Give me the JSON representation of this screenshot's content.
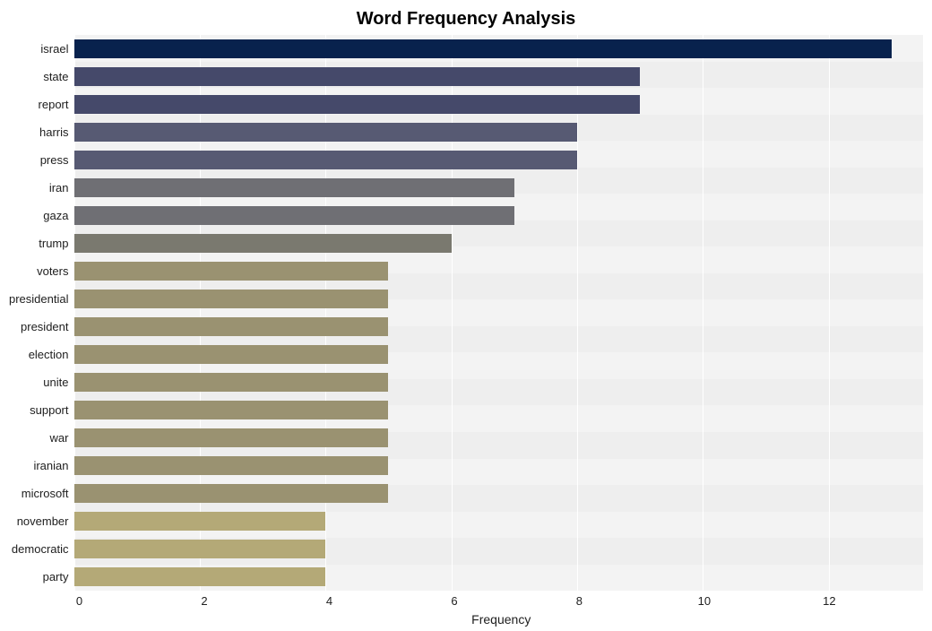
{
  "chart": {
    "type": "bar-horizontal",
    "title": "Word Frequency Analysis",
    "title_fontsize": 20,
    "title_fontweight": "bold",
    "title_color": "#000000",
    "background_color": "#ffffff",
    "plot_background_color": "#f3f3f3",
    "plot_band_color_dark": "#eeeeee",
    "grid_color": "#ffffff",
    "xlabel": "Frequency",
    "xlabel_fontsize": 14,
    "label_fontsize": 13,
    "tick_fontsize": 13,
    "xlim": [
      0,
      13.5
    ],
    "xtick_step": 2,
    "xticks": [
      0,
      2,
      4,
      6,
      8,
      10,
      12
    ],
    "bar_height_ratio": 0.72,
    "categories": [
      "israel",
      "state",
      "report",
      "harris",
      "press",
      "iran",
      "gaza",
      "trump",
      "voters",
      "presidential",
      "president",
      "election",
      "unite",
      "support",
      "war",
      "iranian",
      "microsoft",
      "november",
      "democratic",
      "party"
    ],
    "values": [
      13,
      9,
      9,
      8,
      8,
      7,
      7,
      6,
      5,
      5,
      5,
      5,
      5,
      5,
      5,
      5,
      5,
      4,
      4,
      4
    ],
    "bar_colors": [
      "#08224d",
      "#45496a",
      "#45496a",
      "#575a73",
      "#575a73",
      "#6f6f74",
      "#6f6f74",
      "#7a796f",
      "#9a9271",
      "#9a9271",
      "#9a9271",
      "#9a9271",
      "#9a9271",
      "#9a9271",
      "#9a9271",
      "#9a9271",
      "#9a9271",
      "#b4a977",
      "#b4a977",
      "#b4a977"
    ],
    "axis_text_color": "#202020"
  }
}
